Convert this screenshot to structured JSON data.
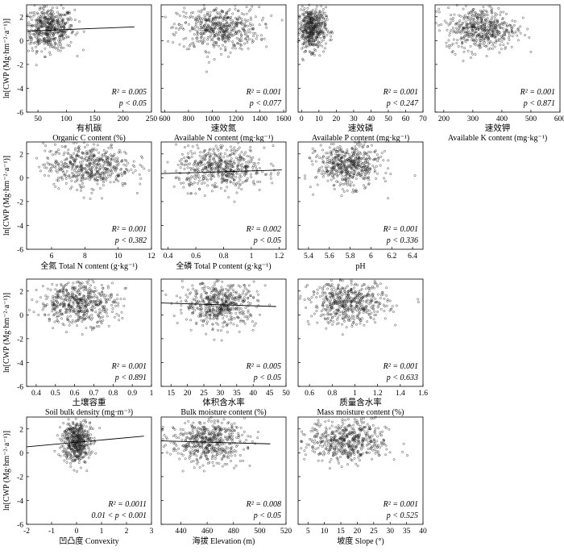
{
  "y_axis_label": "ln[CWP (Mg·hm⁻²·a⁻¹)]",
  "chart_data": [
    {
      "type": "scatter",
      "row": 0,
      "col": 0,
      "xlim": [
        30,
        250
      ],
      "ylim": [
        -6,
        3
      ],
      "xticks": [
        50,
        100,
        150,
        200,
        250
      ],
      "yticks": [
        -6,
        -4,
        -2,
        0,
        2
      ],
      "xlabel_cn": "有机碳",
      "xlabel_en": "Organic C content (%)",
      "r2_text": "R² = 0.005",
      "p_text": "p < 0.05",
      "center": [
        70,
        1.0
      ],
      "spread": [
        22,
        0.9
      ],
      "trend": {
        "x": [
          32,
          220
        ],
        "y": [
          0.8,
          1.15
        ]
      }
    },
    {
      "type": "scatter",
      "row": 0,
      "col": 1,
      "xlim": [
        570,
        1620
      ],
      "ylim": [
        -6,
        3
      ],
      "xticks": [
        600,
        800,
        1000,
        1200,
        1400,
        1600
      ],
      "yticks": [
        -6,
        -4,
        -2,
        0,
        2
      ],
      "xlabel_cn": "速效氮",
      "xlabel_en": "Available N content (mg·kg⁻¹)",
      "r2_text": "R² = 0.001",
      "p_text": "p < 0.077",
      "center": [
        1050,
        1.0
      ],
      "spread": [
        170,
        0.9
      ],
      "trend": null
    },
    {
      "type": "scatter",
      "row": 0,
      "col": 2,
      "xlim": [
        -2,
        70
      ],
      "ylim": [
        -6,
        3
      ],
      "xticks": [
        0,
        10,
        20,
        30,
        40,
        50,
        60,
        70
      ],
      "yticks": [
        -6,
        -4,
        -2,
        0,
        2
      ],
      "xlabel_cn": "速效磷",
      "xlabel_en": "Available P content (mg·kg⁻¹)",
      "r2_text": "R² = 0.001",
      "p_text": "p < 0.247",
      "center": [
        6,
        1.0
      ],
      "spread": [
        4,
        0.9
      ],
      "trend": null
    },
    {
      "type": "scatter",
      "row": 0,
      "col": 3,
      "xlim": [
        170,
        600
      ],
      "ylim": [
        -6,
        3
      ],
      "xticks": [
        200,
        300,
        400,
        500,
        600
      ],
      "yticks": [
        -6,
        -4,
        -2,
        0,
        2
      ],
      "xlabel_cn": "速效钾",
      "xlabel_en": "Available K content (mg·kg⁻¹)",
      "r2_text": "R² = 0.001",
      "p_text": "p < 0.871",
      "center": [
        330,
        1.0
      ],
      "spread": [
        60,
        0.9
      ],
      "trend": null
    },
    {
      "type": "scatter",
      "row": 1,
      "col": 0,
      "xlim": [
        4.5,
        12
      ],
      "ylim": [
        -6,
        3
      ],
      "xticks": [
        6,
        8,
        10,
        12
      ],
      "yticks": [
        -6,
        -4,
        -2,
        0,
        2
      ],
      "xlabel_cn": "",
      "xlabel_en": "全氮 Total N content (g·kg⁻¹)",
      "r2_text": "R² = 0.001",
      "p_text": "p < 0.382",
      "center": [
        8.2,
        1.0
      ],
      "spread": [
        1.3,
        0.9
      ],
      "trend": null
    },
    {
      "type": "scatter",
      "row": 1,
      "col": 1,
      "xlim": [
        0.35,
        1.25
      ],
      "ylim": [
        -6,
        3
      ],
      "xticks": [
        0.4,
        0.6,
        0.8,
        1.0,
        1.2
      ],
      "yticks": [
        -6,
        -4,
        -2,
        0,
        2
      ],
      "xlabel_cn": "",
      "xlabel_en": "全磷 Total P content (g·kg⁻¹)",
      "r2_text": "R² = 0.002",
      "p_text": "p < 0.05",
      "center": [
        0.78,
        0.8
      ],
      "spread": [
        0.16,
        0.9
      ],
      "trend": {
        "x": [
          0.35,
          1.22
        ],
        "y": [
          0.35,
          0.65
        ]
      }
    },
    {
      "type": "scatter",
      "row": 1,
      "col": 2,
      "xlim": [
        5.3,
        6.5
      ],
      "ylim": [
        -6,
        3
      ],
      "xticks": [
        5.4,
        5.6,
        5.8,
        6.0,
        6.2,
        6.4
      ],
      "yticks": [
        -6,
        -4,
        -2,
        0,
        2
      ],
      "xlabel_cn": "",
      "xlabel_en": "pH",
      "r2_text": "R² = 0.001",
      "p_text": "p < 0.336",
      "center": [
        5.78,
        1.0
      ],
      "spread": [
        0.15,
        0.9
      ],
      "trend": null
    },
    {
      "type": "scatter",
      "row": 2,
      "col": 0,
      "xlim": [
        0.35,
        1.0
      ],
      "ylim": [
        -6,
        3
      ],
      "xticks": [
        0.4,
        0.5,
        0.6,
        0.7,
        0.8,
        0.9,
        1.0
      ],
      "yticks": [
        -6,
        -4,
        -2,
        0,
        2
      ],
      "xlabel_cn": "土壤容重",
      "xlabel_en": "Soil bulk density (mg·m⁻³)",
      "r2_text": "R² = 0.001",
      "p_text": "p < 0.891",
      "center": [
        0.62,
        1.0
      ],
      "spread": [
        0.1,
        0.9
      ],
      "trend": null
    },
    {
      "type": "scatter",
      "row": 2,
      "col": 1,
      "xlim": [
        12,
        50
      ],
      "ylim": [
        -6,
        3
      ],
      "xticks": [
        15,
        20,
        25,
        30,
        35,
        40,
        45,
        50
      ],
      "yticks": [
        -6,
        -4,
        -2,
        0,
        2
      ],
      "xlabel_cn": "体积含水率",
      "xlabel_en": "Bulk moisture content (%)",
      "r2_text": "R² = 0.005",
      "p_text": "p < 0.05",
      "center": [
        30,
        0.9
      ],
      "spread": [
        5.5,
        0.9
      ],
      "trend": {
        "x": [
          12,
          47
        ],
        "y": [
          1.0,
          0.7
        ]
      }
    },
    {
      "type": "scatter",
      "row": 2,
      "col": 2,
      "xlim": [
        0.5,
        1.6
      ],
      "ylim": [
        -6,
        3
      ],
      "xticks": [
        0.6,
        0.8,
        1.0,
        1.2,
        1.4,
        1.6
      ],
      "yticks": [
        -6,
        -4,
        -2,
        0,
        2
      ],
      "xlabel_cn": "质量含水率",
      "xlabel_en": "Mass moisture content (%)",
      "r2_text": "R² = 0.001",
      "p_text": "p < 0.633",
      "center": [
        0.95,
        1.0
      ],
      "spread": [
        0.17,
        0.9
      ],
      "trend": null
    },
    {
      "type": "scatter",
      "row": 3,
      "col": 0,
      "xlim": [
        -2,
        3
      ],
      "ylim": [
        -6,
        3
      ],
      "xticks": [
        -2,
        -1,
        0,
        1,
        2,
        3
      ],
      "yticks": [
        -6,
        -4,
        -2,
        0,
        2
      ],
      "xlabel_cn": "",
      "xlabel_en": "凹凸度 Convexity",
      "r2_text": "R² = 0.0011",
      "p_text": "0.01 < p < 0.001",
      "center": [
        0.0,
        1.0
      ],
      "spread": [
        0.28,
        0.9
      ],
      "trend": {
        "x": [
          -2,
          2.7
        ],
        "y": [
          0.5,
          1.4
        ]
      }
    },
    {
      "type": "scatter",
      "row": 3,
      "col": 1,
      "xlim": [
        425,
        520
      ],
      "ylim": [
        -6,
        3
      ],
      "xticks": [
        440,
        460,
        480,
        500,
        520
      ],
      "yticks": [
        -6,
        -4,
        -2,
        0,
        2
      ],
      "xlabel_cn": "",
      "xlabel_en": "海拔 Elevation (m)",
      "r2_text": "R² = 0.008",
      "p_text": "p < 0.05",
      "center": [
        460,
        0.95
      ],
      "spread": [
        14,
        0.9
      ],
      "trend": {
        "x": [
          425,
          508
        ],
        "y": [
          1.0,
          0.75
        ]
      }
    },
    {
      "type": "scatter",
      "row": 3,
      "col": 2,
      "xlim": [
        2,
        40
      ],
      "ylim": [
        -6,
        3
      ],
      "xticks": [
        5,
        10,
        15,
        20,
        25,
        30,
        35,
        40
      ],
      "yticks": [
        -6,
        -4,
        -2,
        0,
        2
      ],
      "xlabel_cn": "",
      "xlabel_en": "坡度 Slope (°)",
      "r2_text": "R² = 0.001",
      "p_text": "p < 0.525",
      "center": [
        17,
        1.0
      ],
      "spread": [
        6,
        0.9
      ],
      "trend": null
    }
  ]
}
